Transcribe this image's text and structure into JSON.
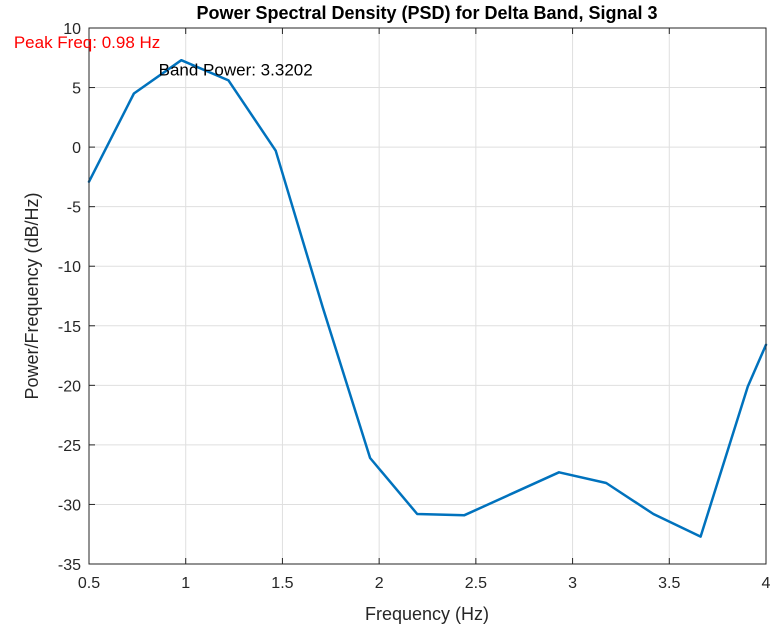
{
  "chart_data": {
    "type": "line",
    "title": "Power Spectral Density (PSD) for Delta Band, Signal 3",
    "xlabel": "Frequency (Hz)",
    "ylabel": "Power/Frequency (dB/Hz)",
    "xlim": [
      0.5,
      4
    ],
    "ylim": [
      -35,
      10
    ],
    "xticks": [
      0.5,
      1,
      1.5,
      2,
      2.5,
      3,
      3.5,
      4
    ],
    "yticks": [
      -35,
      -30,
      -25,
      -20,
      -15,
      -10,
      -5,
      0,
      5,
      10
    ],
    "xtick_labels": [
      "0.5",
      "1",
      "1.5",
      "2",
      "2.5",
      "3",
      "3.5",
      "4"
    ],
    "ytick_labels": [
      "-35",
      "-30",
      "-25",
      "-20",
      "-15",
      "-10",
      "-5",
      "0",
      "5",
      "10"
    ],
    "grid": true,
    "series": [
      {
        "color": "#0072BD",
        "x": [
          0.5,
          0.732,
          0.977,
          1.221,
          1.465,
          1.709,
          1.953,
          2.197,
          2.441,
          2.686,
          2.93,
          3.174,
          3.418,
          3.662,
          3.906,
          4.0
        ],
        "y": [
          -2.9,
          4.5,
          7.3,
          5.6,
          -0.3,
          -13.5,
          -26.1,
          -30.8,
          -30.9,
          -29.1,
          -27.3,
          -28.2,
          -30.8,
          -32.7,
          -20.1,
          -16.6
        ]
      }
    ],
    "annotations": [
      {
        "text": "Peak Freq: 0.98 Hz",
        "x": 0.49,
        "y": 8.3,
        "color": "#FF0000"
      },
      {
        "text": "Band Power: 3.3202",
        "x": 0.86,
        "y": 6.0,
        "color": "#000000"
      }
    ]
  }
}
